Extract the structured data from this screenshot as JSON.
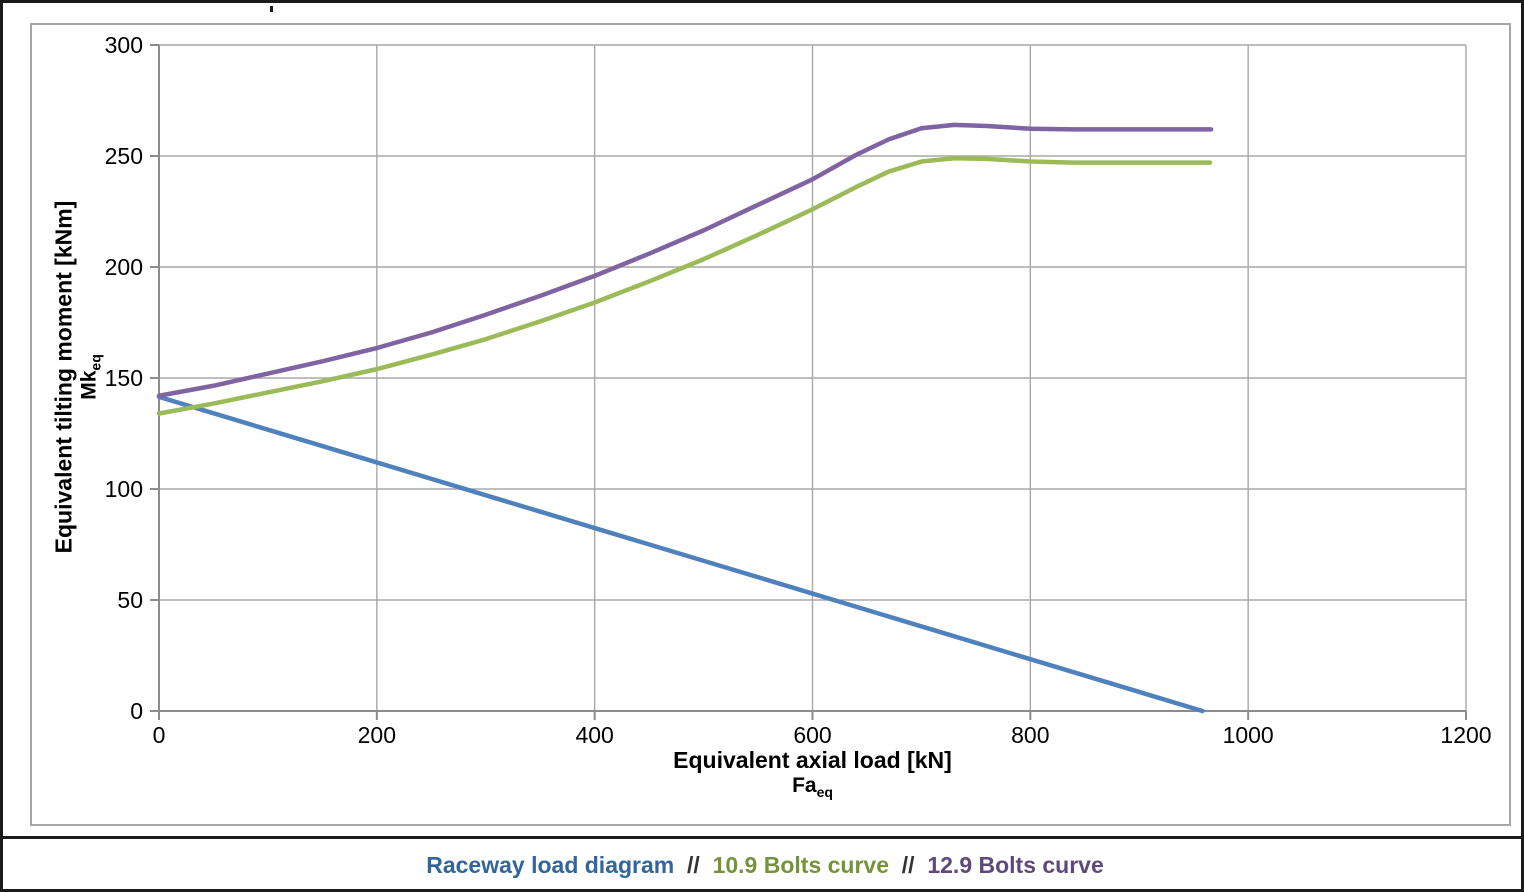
{
  "page": {
    "background": "#ffffff",
    "border_color": "#1a1a1a"
  },
  "chart_data": {
    "type": "line",
    "title": "",
    "xlabel": "Equivalent axial load [kN]",
    "xlabel2_main": "Fa",
    "xlabel2_sub": "eq",
    "ylabel": "Equivalent tilting moment [kNm]",
    "ylabel2_main": "Mk",
    "ylabel2_sub": "eq",
    "xlim": [
      0,
      1200
    ],
    "ylim": [
      0,
      300
    ],
    "xticks": [
      0,
      200,
      400,
      600,
      800,
      1000,
      1200
    ],
    "yticks": [
      0,
      50,
      100,
      150,
      200,
      250,
      300
    ],
    "grid": true,
    "grid_color": "#a8a8a8",
    "axis_color": "#8c8c8c",
    "legend_position": "bottom-center",
    "series": [
      {
        "name": "Raceway load diagram",
        "color": "#4f81bd",
        "x": [
          0,
          958
        ],
        "y": [
          141.5,
          0
        ]
      },
      {
        "name": "10.9 Bolts curve",
        "color": "#9bbb59",
        "x": [
          0,
          50,
          100,
          150,
          200,
          250,
          300,
          350,
          400,
          450,
          500,
          550,
          600,
          640,
          670,
          700,
          730,
          760,
          800,
          840,
          900,
          965
        ],
        "y": [
          134,
          138.5,
          143.5,
          148.5,
          154,
          160.5,
          167.5,
          175.5,
          184,
          193.5,
          203.5,
          214.5,
          226,
          236,
          243,
          247.5,
          249,
          248.7,
          247.5,
          247,
          247,
          247
        ]
      },
      {
        "name": "12.9 Bolts curve",
        "color": "#8064a2",
        "x": [
          0,
          50,
          100,
          150,
          200,
          250,
          300,
          350,
          400,
          450,
          500,
          550,
          600,
          640,
          670,
          700,
          730,
          760,
          800,
          840,
          900,
          966
        ],
        "y": [
          142,
          146.5,
          152,
          157.5,
          163.5,
          170.5,
          178.5,
          187,
          196,
          206,
          216.5,
          228,
          239.5,
          250.5,
          257.5,
          262.5,
          264,
          263.5,
          262.3,
          262,
          262,
          262
        ]
      }
    ]
  },
  "legend": {
    "separator": "//",
    "separator_color": "#333333",
    "items": [
      {
        "label": "Raceway load diagram",
        "color": "#31659c"
      },
      {
        "label": "10.9 Bolts curve",
        "color": "#76933c"
      },
      {
        "label": "12.9 Bolts curve",
        "color": "#60497a"
      }
    ]
  }
}
